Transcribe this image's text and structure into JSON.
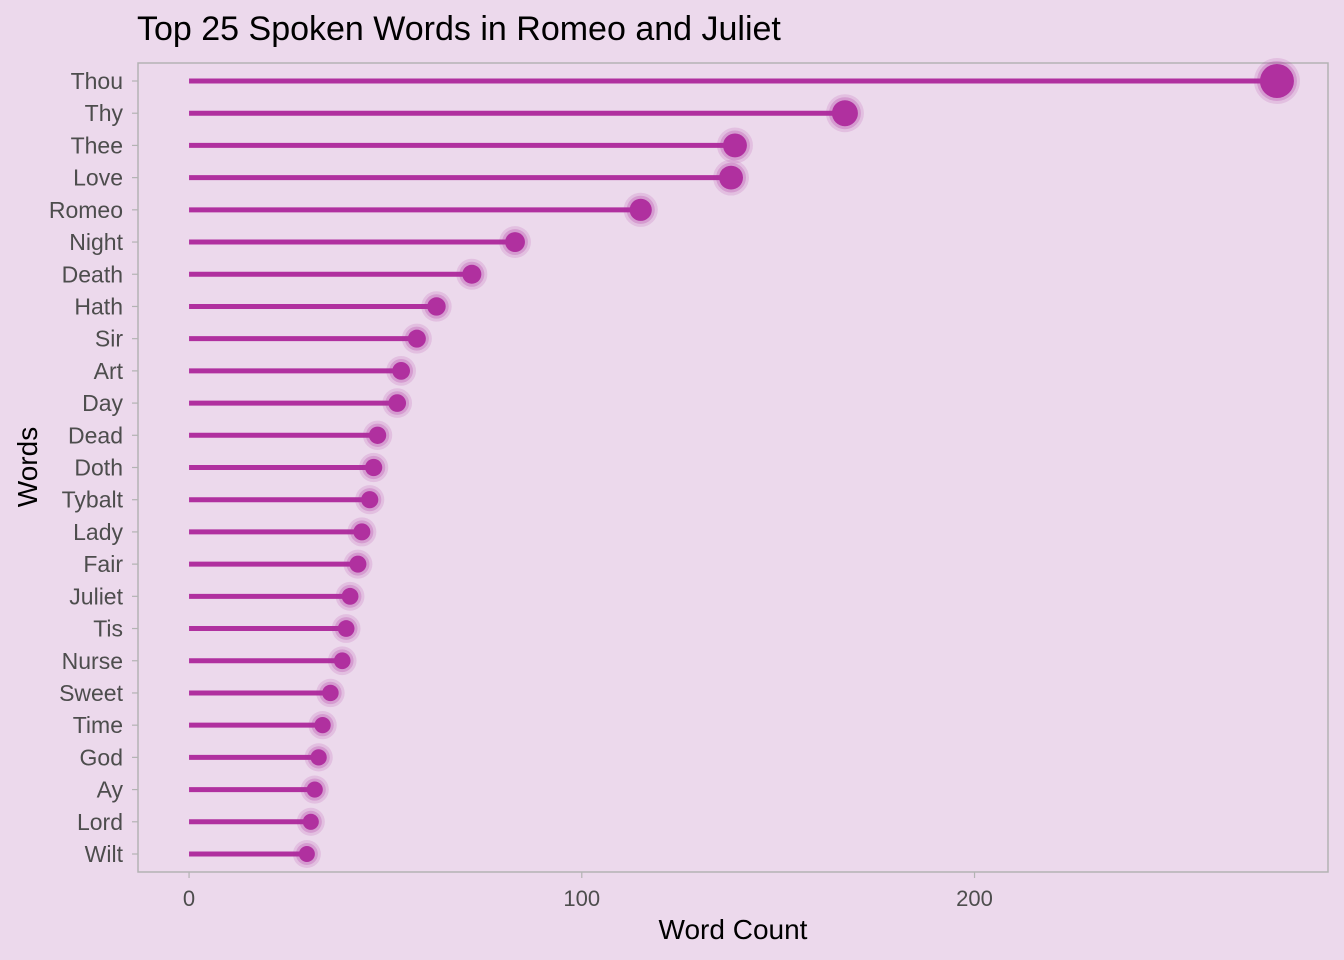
{
  "chart_data": {
    "type": "lollipop",
    "title": "Top 25 Spoken Words in Romeo and Juliet",
    "xlabel": "Word Count",
    "ylabel": "Words",
    "xlim": [
      -13,
      290
    ],
    "xticks": [
      0,
      100,
      200
    ],
    "grid": false,
    "legend": "none",
    "categories": [
      "Thou",
      "Thy",
      "Thee",
      "Love",
      "Romeo",
      "Night",
      "Death",
      "Hath",
      "Sir",
      "Art",
      "Day",
      "Dead",
      "Doth",
      "Tybalt",
      "Lady",
      "Fair",
      "Juliet",
      "Tis",
      "Nurse",
      "Sweet",
      "Time",
      "God",
      "Ay",
      "Lord",
      "Wilt"
    ],
    "values": [
      277,
      167,
      139,
      138,
      115,
      83,
      72,
      63,
      58,
      54,
      53,
      48,
      47,
      46,
      44,
      43,
      41,
      40,
      39,
      36,
      34,
      33,
      32,
      31,
      30
    ]
  },
  "colors": {
    "background": "#ecd9ec",
    "stem": "#b0309f",
    "point": "#b0309f",
    "axis": "#b3b3b3",
    "tick_text": "#4d4d4d"
  }
}
